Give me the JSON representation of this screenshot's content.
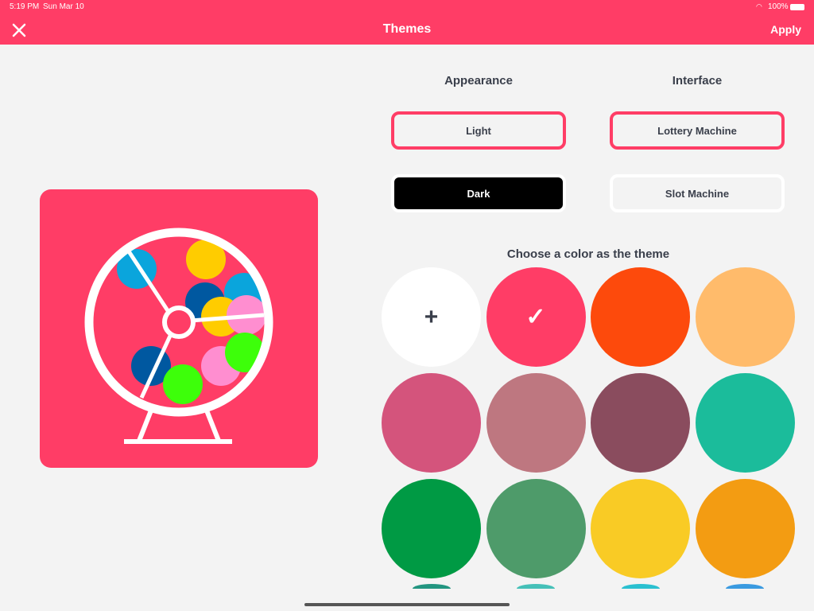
{
  "status": {
    "time": "5:19 PM",
    "date": "Sun Mar 10",
    "battery": "100%"
  },
  "nav": {
    "title": "Themes",
    "apply": "Apply",
    "close_icon": "close-icon"
  },
  "appearance": {
    "heading": "Appearance",
    "options": [
      "Light",
      "Dark"
    ],
    "selected": "Light"
  },
  "interface": {
    "heading": "Interface",
    "options": [
      "Lottery Machine",
      "Slot Machine"
    ],
    "selected": "Lottery Machine"
  },
  "colors": {
    "heading": "Choose a color as the theme",
    "add_symbol": "+",
    "check_symbol": "✓",
    "accent": "#ff3d66",
    "swatches": [
      "#ffffff",
      "#ff3d66",
      "#fd4a0c",
      "#ffbb6b",
      "#d4547c",
      "#be7780",
      "#8a4c5e",
      "#1bbc9b",
      "#009a44",
      "#4e9b6a",
      "#f9cb25",
      "#f39c12",
      "#229580",
      "#45c0b8",
      "#2ac0d0",
      "#3a9ae0"
    ],
    "selected_index": 1
  }
}
